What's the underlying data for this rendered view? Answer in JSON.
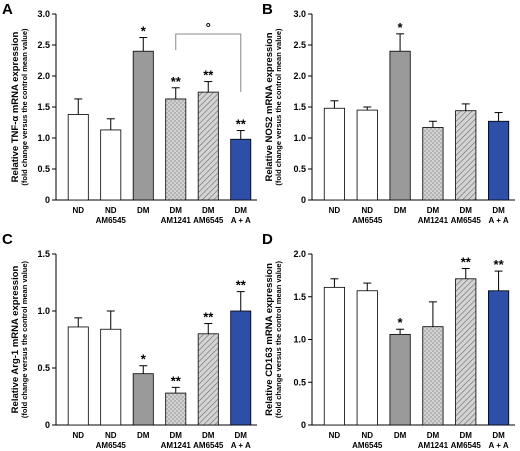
{
  "chart_data": [
    {
      "panel": "A",
      "type": "bar",
      "ylabel": "Relative TNF-α mRNA expression",
      "ysublabel": "(fold change versus the control mean value)",
      "ylim": [
        0,
        3.0
      ],
      "yticks": [
        "0",
        "0.5",
        "1.0",
        "1.5",
        "2.0",
        "2.5",
        "3.0"
      ],
      "categories": [
        [
          "ND"
        ],
        [
          "ND",
          "AM6545"
        ],
        [
          "DM"
        ],
        [
          "DM",
          "AM1241"
        ],
        [
          "DM",
          "AM6545"
        ],
        [
          "DM",
          "A + A"
        ]
      ],
      "values": [
        1.38,
        1.13,
        2.4,
        1.63,
        1.74,
        0.98
      ],
      "errors": [
        0.25,
        0.18,
        0.22,
        0.18,
        0.17,
        0.14
      ],
      "significance": [
        "",
        "",
        "*",
        "**",
        "**",
        "**"
      ],
      "bracket": {
        "from": 3,
        "to": 5,
        "label": "°"
      }
    },
    {
      "panel": "B",
      "type": "bar",
      "ylabel": "Relative NOS2 mRNA expression",
      "ysublabel": "(fold change versus the control mean value)",
      "ylim": [
        0,
        3.0
      ],
      "yticks": [
        "0",
        "0.5",
        "1.0",
        "1.5",
        "2.0",
        "2.5",
        "3.0"
      ],
      "categories": [
        [
          "ND"
        ],
        [
          "ND",
          "AM6545"
        ],
        [
          "DM"
        ],
        [
          "DM",
          "AM1241"
        ],
        [
          "DM",
          "AM6545"
        ],
        [
          "DM",
          "A + A"
        ]
      ],
      "values": [
        1.48,
        1.45,
        2.4,
        1.17,
        1.44,
        1.27
      ],
      "errors": [
        0.12,
        0.05,
        0.28,
        0.1,
        0.11,
        0.14
      ],
      "significance": [
        "",
        "",
        "*",
        "",
        "",
        ""
      ]
    },
    {
      "panel": "C",
      "type": "bar",
      "ylabel": "Relative Arg-1 mRNA expression",
      "ysublabel": "(fold change versus the control mean value)",
      "ylim": [
        0,
        1.5
      ],
      "yticks": [
        "0",
        "0.5",
        "1.0",
        "1.5"
      ],
      "categories": [
        [
          "ND"
        ],
        [
          "ND",
          "AM6545"
        ],
        [
          "DM"
        ],
        [
          "DM",
          "AM1241"
        ],
        [
          "DM",
          "AM6545"
        ],
        [
          "DM",
          "A + A"
        ]
      ],
      "values": [
        0.86,
        0.84,
        0.45,
        0.28,
        0.8,
        1.0
      ],
      "errors": [
        0.08,
        0.16,
        0.07,
        0.05,
        0.09,
        0.17
      ],
      "significance": [
        "",
        "",
        "*",
        "**",
        "**",
        "**"
      ]
    },
    {
      "panel": "D",
      "type": "bar",
      "ylabel": "Relative CD163 mRNA expression",
      "ysublabel": "(fold change versus the control mean value)",
      "ylim": [
        0,
        2.0
      ],
      "yticks": [
        "0",
        "0.5",
        "1.0",
        "1.5",
        "2.0"
      ],
      "categories": [
        [
          "ND"
        ],
        [
          "ND",
          "AM6545"
        ],
        [
          "DM"
        ],
        [
          "DM",
          "AM1241"
        ],
        [
          "DM",
          "AM6545"
        ],
        [
          "DM",
          "A + A"
        ]
      ],
      "values": [
        1.61,
        1.57,
        1.06,
        1.15,
        1.71,
        1.57
      ],
      "errors": [
        0.1,
        0.09,
        0.06,
        0.29,
        0.12,
        0.23
      ],
      "significance": [
        "",
        "",
        "*",
        "",
        "**",
        "**"
      ]
    }
  ],
  "colors": {
    "white_fill": "#ffffff",
    "gray_fill": "#9a9a9a",
    "dotted_fill": "#b4b4b4",
    "hatch_fill": "#d4d4d4",
    "blue_fill": "#2e4fa8"
  }
}
